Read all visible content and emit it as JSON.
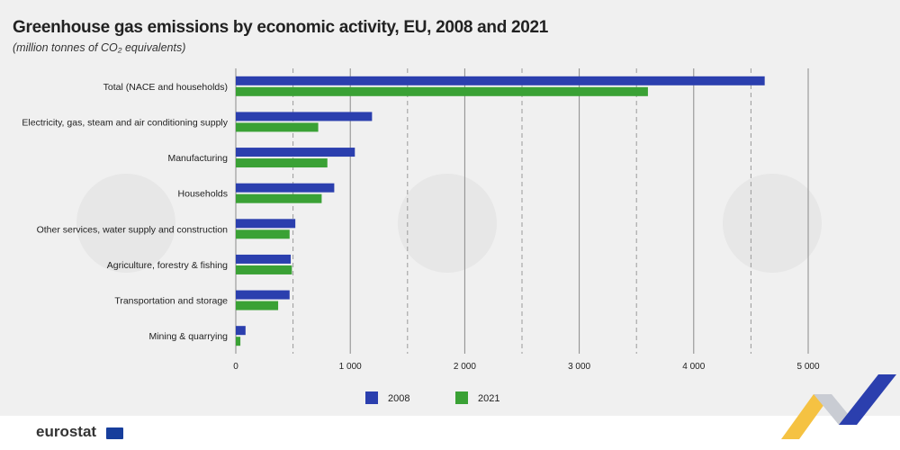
{
  "title": "Greenhouse gas emissions by economic activity, EU, 2008 and 2021",
  "subtitle": "(million tonnes of CO₂ equivalents)",
  "brand": "eurostat",
  "colors": {
    "series_2008": "#2b3fae",
    "series_2021": "#3aa135",
    "background": "#f0f0f0"
  },
  "chart_data": {
    "type": "bar",
    "orientation": "horizontal",
    "categories": [
      "Total (NACE and households)",
      "Electricity, gas, steam and air conditioning supply",
      "Manufacturing",
      "Households",
      "Other services, water supply and construction",
      "Agriculture, forestry & fishing",
      "Transportation and storage",
      "Mining & quarrying"
    ],
    "series": [
      {
        "name": "2008",
        "values": [
          4620,
          1190,
          1040,
          860,
          520,
          480,
          470,
          85
        ]
      },
      {
        "name": "2021",
        "values": [
          3600,
          720,
          800,
          750,
          470,
          490,
          370,
          40
        ]
      }
    ],
    "xlim": [
      0,
      5000
    ],
    "ticks": [
      0,
      1000,
      2000,
      3000,
      4000,
      5000
    ],
    "tick_labels": [
      "0",
      "1 000",
      "2 000",
      "3 000",
      "4 000",
      "5 000"
    ],
    "grid": true,
    "legend": "bottom-center"
  }
}
